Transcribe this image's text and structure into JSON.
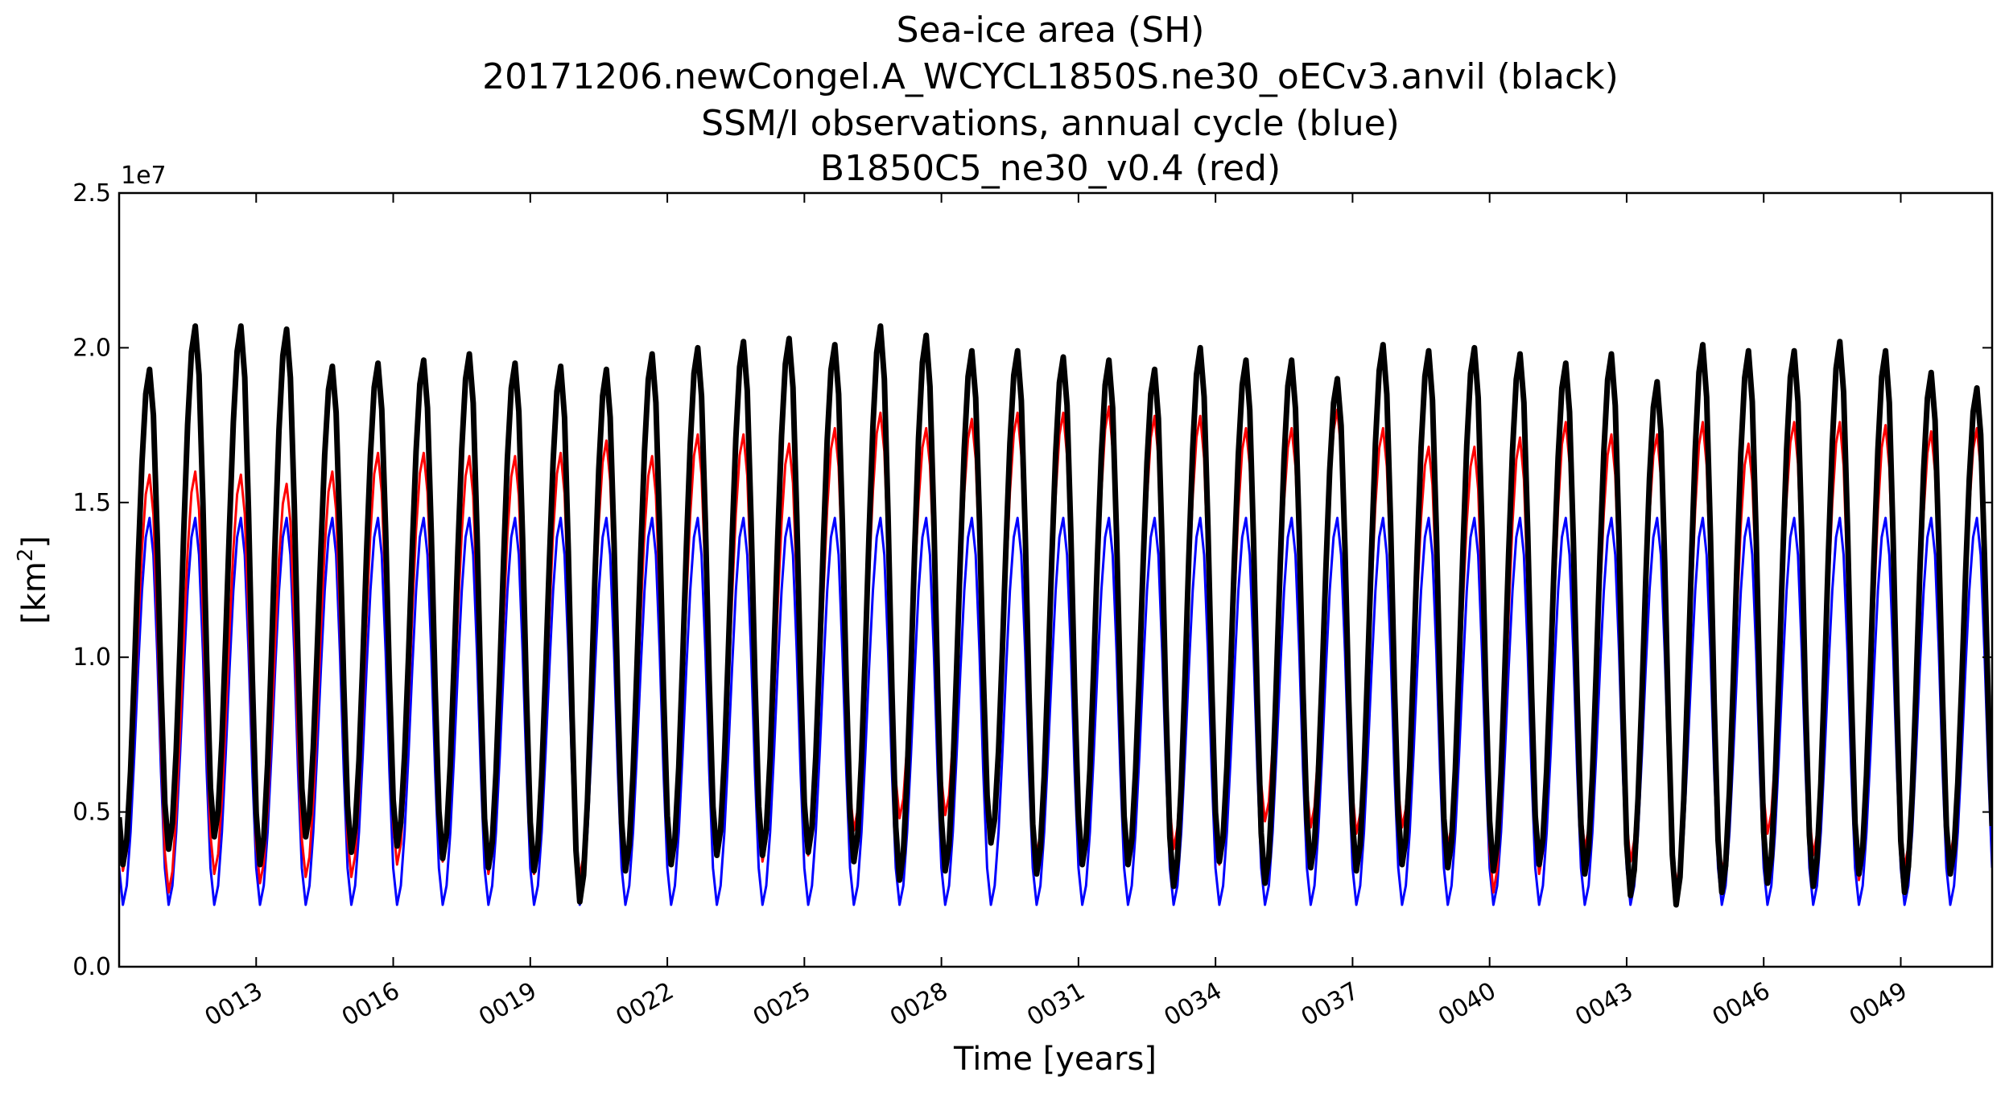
{
  "chart_data": {
    "type": "line",
    "title_lines": [
      "Sea-ice area (SH)",
      "20171206.newCongel.A_WCYCL1850S.ne30_oECv3.anvil (black)",
      "SSM/I observations, annual cycle (blue)",
      "B1850C5_ne30_v0.4 (red)"
    ],
    "xlabel": "Time [years]",
    "ylabel_base": "[km",
    "ylabel_exp": "2",
    "ylabel_close": "]",
    "y_offset_text": "1e7",
    "xlim": [
      10.0,
      51.0
    ],
    "ylim": [
      0.0,
      25000000
    ],
    "yticks": [
      0.0,
      5000000,
      10000000,
      15000000,
      20000000,
      25000000
    ],
    "ytick_labels": [
      "0.0",
      "0.5",
      "1.0",
      "1.5",
      "2.0",
      "2.5"
    ],
    "xticks": [
      13,
      16,
      19,
      22,
      25,
      28,
      31,
      34,
      37,
      40,
      43,
      46,
      49
    ],
    "xtick_labels": [
      "0013",
      "0016",
      "0019",
      "0022",
      "0025",
      "0028",
      "0031",
      "0034",
      "0037",
      "0040",
      "0043",
      "0046",
      "0049"
    ],
    "grid": false,
    "series": [
      {
        "color": "#0000ff",
        "kind": "annual_cycle",
        "max": 14500000,
        "min": 2000000,
        "max_month": 9,
        "min_month": 2
      },
      {
        "color": "#ff0000",
        "kind": "yearly_extremes",
        "start_year": 10,
        "annual_max": [
          15900000,
          16000000,
          15900000,
          15600000,
          16000000,
          16600000,
          16600000,
          16500000,
          16500000,
          16600000,
          17000000,
          16500000,
          17200000,
          17200000,
          16900000,
          17400000,
          17900000,
          17400000,
          17700000,
          17900000,
          17900000,
          18100000,
          17800000,
          17800000,
          17400000,
          17400000,
          18000000,
          17400000,
          16800000,
          16800000,
          17100000,
          17600000,
          17200000,
          17200000,
          17600000,
          16900000,
          17600000,
          17600000,
          17500000,
          17300000,
          17400000
        ],
        "annual_min": [
          3100000,
          2400000,
          3000000,
          2700000,
          2900000,
          2900000,
          3300000,
          3400000,
          3000000,
          3000000,
          2900000,
          3400000,
          3300000,
          3600000,
          3400000,
          3600000,
          4400000,
          4800000,
          4900000,
          4200000,
          3600000,
          3300000,
          3500000,
          3800000,
          3300000,
          4700000,
          4500000,
          4300000,
          4500000,
          3900000,
          2400000,
          3000000,
          3800000,
          3400000,
          2600000,
          3000000,
          4300000,
          3600000,
          2800000,
          3200000,
          3600000
        ]
      },
      {
        "color": "#000000",
        "kind": "yearly_extremes",
        "start_year": 10,
        "annual_max": [
          19300000,
          20700000,
          20700000,
          20600000,
          19400000,
          19500000,
          19600000,
          19800000,
          19500000,
          19400000,
          19300000,
          19800000,
          20000000,
          20200000,
          20300000,
          20100000,
          20700000,
          20400000,
          19900000,
          19900000,
          19700000,
          19600000,
          19300000,
          20000000,
          19600000,
          19600000,
          19000000,
          20100000,
          19900000,
          20000000,
          19800000,
          19500000,
          19800000,
          18900000,
          20100000,
          19900000,
          19900000,
          20200000,
          19900000,
          19200000,
          18700000
        ],
        "annual_min": [
          3300000,
          3800000,
          4200000,
          3300000,
          4200000,
          3700000,
          3900000,
          3500000,
          3200000,
          3100000,
          2100000,
          3100000,
          3300000,
          3600000,
          3600000,
          3700000,
          3400000,
          2800000,
          3100000,
          4000000,
          3000000,
          3300000,
          3300000,
          2600000,
          3400000,
          2700000,
          3200000,
          3100000,
          3300000,
          3200000,
          3100000,
          3300000,
          3000000,
          2300000,
          2000000,
          2400000,
          2700000,
          2600000,
          3000000,
          2400000,
          3000000
        ]
      }
    ]
  }
}
